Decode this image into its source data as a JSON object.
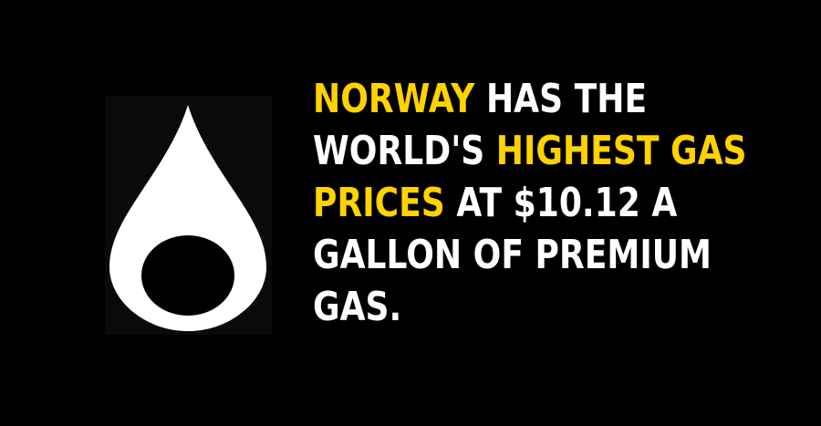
{
  "colors": {
    "background": "#000000",
    "highlight": "#ffd200",
    "text": "#ffffff",
    "icon": "#ffffff"
  },
  "icon": {
    "name": "oil-drop-icon"
  },
  "fact": {
    "line1": {
      "highlight": "NORWAY",
      "rest": " HAS THE"
    },
    "line2": {
      "lead": "WORLD'S ",
      "highlight": "HIGHEST GAS"
    },
    "line3": {
      "highlight": "PRICES",
      "rest": " AT $10.12 A"
    },
    "line4": {
      "text": "GALLON OF PREMIUM"
    },
    "line5": {
      "text": "GAS."
    }
  }
}
